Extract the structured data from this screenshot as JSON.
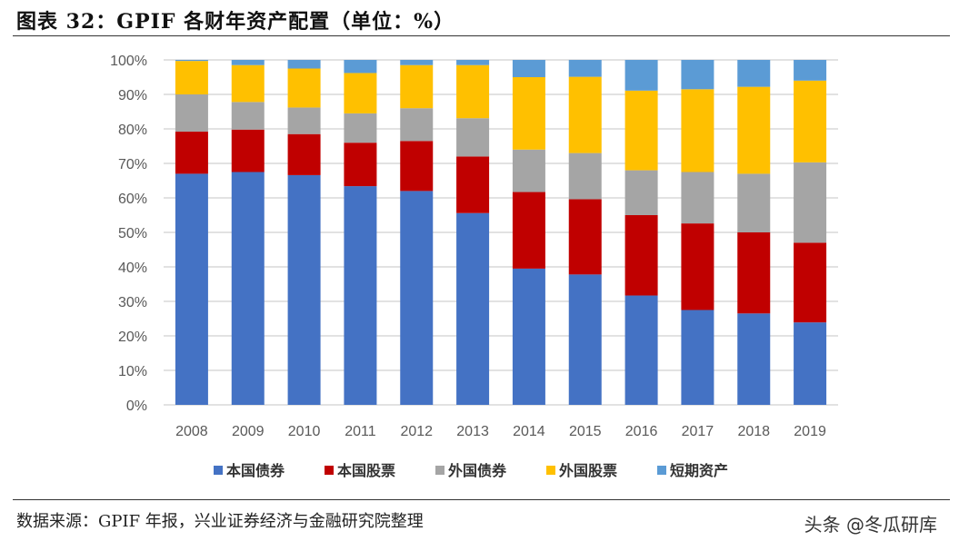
{
  "header": {
    "title": "图表 32：GPIF 各财年资产配置（单位：%）"
  },
  "footer": {
    "source": "数据来源：GPIF 年报，兴业证券经济与金融研究院整理",
    "watermark": "头条 @冬瓜研库"
  },
  "chart_data": {
    "type": "bar",
    "stacked": true,
    "title": "",
    "xlabel": "",
    "ylabel": "",
    "ylim": [
      0,
      100
    ],
    "yticks": [
      "0%",
      "10%",
      "20%",
      "30%",
      "40%",
      "50%",
      "60%",
      "70%",
      "80%",
      "90%",
      "100%"
    ],
    "grid": true,
    "legend": "bottom",
    "categories": [
      "2008",
      "2009",
      "2010",
      "2011",
      "2012",
      "2013",
      "2014",
      "2015",
      "2016",
      "2017",
      "2018",
      "2019"
    ],
    "series": [
      {
        "name": "本国债券",
        "color": "#4472C4",
        "values": [
          67.0,
          67.5,
          66.6,
          63.4,
          62.0,
          55.6,
          39.5,
          37.8,
          31.7,
          27.5,
          26.5,
          23.9
        ]
      },
      {
        "name": "本国股票",
        "color": "#C00000",
        "values": [
          12.2,
          12.3,
          11.9,
          12.6,
          14.5,
          16.4,
          22.2,
          21.8,
          23.3,
          25.1,
          23.5,
          23.1
        ]
      },
      {
        "name": "外国债券",
        "color": "#A5A5A5",
        "values": [
          10.8,
          8.0,
          7.7,
          8.5,
          9.5,
          11.1,
          12.3,
          13.4,
          13.0,
          14.9,
          17.0,
          23.3
        ]
      },
      {
        "name": "外国股票",
        "color": "#FFC000",
        "values": [
          9.7,
          10.7,
          11.3,
          11.7,
          12.5,
          15.4,
          21.0,
          22.1,
          23.1,
          24.0,
          25.2,
          23.7
        ]
      },
      {
        "name": "短期资产",
        "color": "#5B9BD5",
        "values": [
          0.3,
          1.5,
          2.5,
          3.8,
          1.5,
          1.5,
          5.0,
          4.9,
          8.9,
          8.5,
          7.8,
          6.0
        ]
      }
    ]
  }
}
